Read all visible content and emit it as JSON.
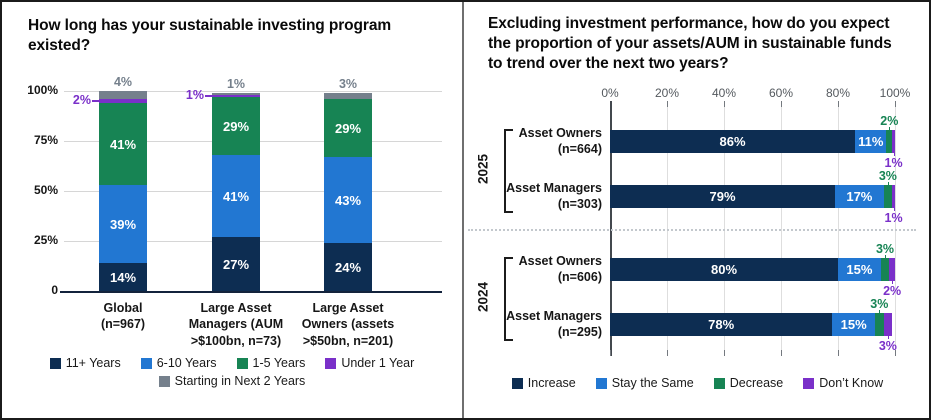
{
  "colors": {
    "navy": "#0d2d52",
    "blue": "#2277d2",
    "green": "#178454",
    "purple": "#7a30c9",
    "gray": "#75808c",
    "grid_light": "#d6d6d6",
    "baseline_dark": "#13233c",
    "axis_dark": "#43484e",
    "tick_gray": "#74797f",
    "dotted_separator": "#c3c8cd",
    "axis_label_gray": "#54595e",
    "text_black": "#1a1a1a"
  },
  "panels": {
    "left_title": "How long has your sustainable investing program\nexisted?",
    "right_title": "Excluding investment performance, how do you expect\nthe proportion of your assets/AUM in sustainable funds\nto trend over the next two years?"
  },
  "chart_data": [
    {
      "type": "bar",
      "stacked": true,
      "orientation": "vertical",
      "title": "How long has your sustainable investing program existed?",
      "unit": "%",
      "ylim": [
        0,
        100
      ],
      "y_ticks": [
        0,
        25,
        50,
        75,
        100
      ],
      "y_tick_labels": [
        "0",
        "25%",
        "50%",
        "75%",
        "100%"
      ],
      "grid": true,
      "legend_position": "bottom",
      "categories": [
        "Global\n(n=967)",
        "Large Asset\nManagers (AUM\n>$100bn, n=73)",
        "Large Asset\nOwners (assets\n>$50bn, n=201)"
      ],
      "series": [
        {
          "name": "11+ Years",
          "color_key": "navy",
          "values": [
            14,
            27,
            24
          ]
        },
        {
          "name": "6-10 Years",
          "color_key": "blue",
          "values": [
            39,
            41,
            43
          ]
        },
        {
          "name": "1-5 Years",
          "color_key": "green",
          "values": [
            41,
            29,
            29
          ]
        },
        {
          "name": "Under 1 Year",
          "color_key": "purple",
          "values": [
            2,
            1,
            0
          ]
        },
        {
          "name": "Starting in Next 2 Years",
          "color_key": "gray",
          "values": [
            4,
            1,
            3
          ]
        }
      ]
    },
    {
      "type": "bar",
      "stacked": true,
      "orientation": "horizontal",
      "title": "Excluding investment performance, how do you expect the proportion of your assets/AUM in sustainable funds to trend over the next two years?",
      "unit": "%",
      "xlim": [
        0,
        100
      ],
      "x_ticks": [
        0,
        20,
        40,
        60,
        80,
        100
      ],
      "x_tick_labels": [
        "0%",
        "20%",
        "40%",
        "60%",
        "80%",
        "100%"
      ],
      "grid": true,
      "legend_position": "bottom",
      "groups": [
        {
          "label": "2025",
          "rows": [
            0,
            1
          ]
        },
        {
          "label": "2024",
          "rows": [
            2,
            3
          ]
        }
      ],
      "categories": [
        "Asset Owners\n(n=664)",
        "Asset Managers\n(n=303)",
        "Asset Owners\n(n=606)",
        "Asset Managers\n(n=295)"
      ],
      "series": [
        {
          "name": "Increase",
          "color_key": "navy",
          "values": [
            86,
            79,
            80,
            78
          ]
        },
        {
          "name": "Stay the Same",
          "color_key": "blue",
          "values": [
            11,
            17,
            15,
            15
          ]
        },
        {
          "name": "Decrease",
          "color_key": "green",
          "values": [
            2,
            3,
            3,
            3
          ]
        },
        {
          "name": "Don’t Know",
          "color_key": "purple",
          "values": [
            1,
            1,
            2,
            3
          ]
        }
      ]
    }
  ]
}
